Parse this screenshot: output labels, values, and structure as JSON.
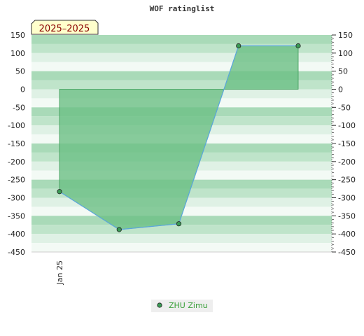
{
  "chart_data": {
    "type": "area",
    "title": "WOF ratinglist",
    "period_label": "2025–2025",
    "ylim": [
      -450,
      150
    ],
    "yticks": [
      150,
      100,
      50,
      0,
      -50,
      -100,
      -150,
      -200,
      -250,
      -300,
      -350,
      -400,
      -450
    ],
    "x_tick_labels": [
      "Jan 25"
    ],
    "x": [
      0,
      1,
      2,
      3,
      4
    ],
    "series": [
      {
        "name": "ZHU Zimu",
        "values": [
          -283,
          -388,
          -372,
          120,
          120
        ]
      }
    ],
    "baseline": 0,
    "grid": true,
    "legend": "bottom-center",
    "colors": {
      "line": "#5ba6dd",
      "fill": "#6cbf84",
      "marker": "#3a9a55",
      "legend_text": "#3aa03a",
      "band_dark": "#b3dfc0",
      "band_light": "#eef8f1",
      "period_bg": "#ffffcc"
    }
  }
}
